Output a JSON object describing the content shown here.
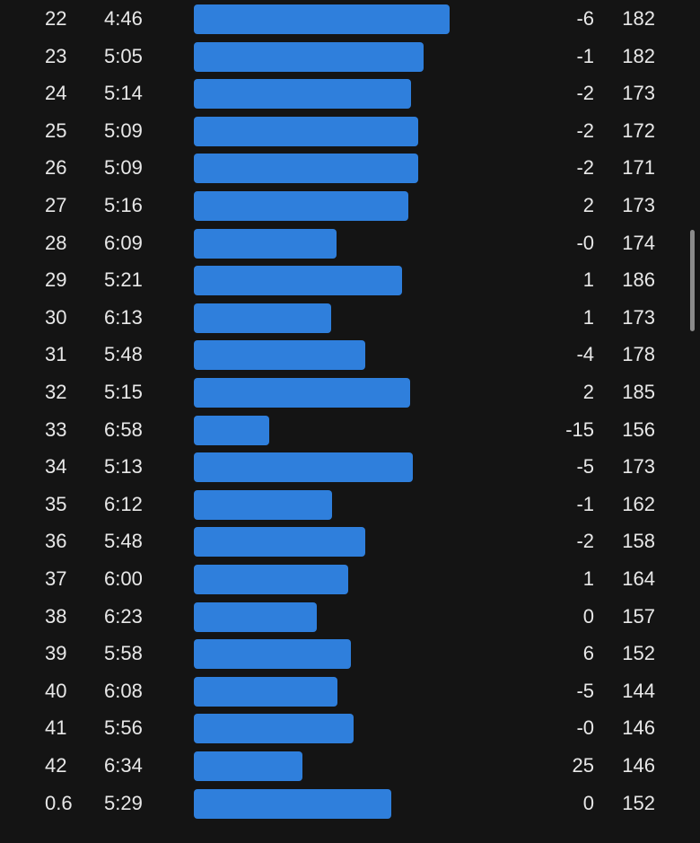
{
  "splits": [
    {
      "km": "22",
      "pace": "4:46",
      "pace_seconds": 286,
      "elev": "-6",
      "hr": "182"
    },
    {
      "km": "23",
      "pace": "5:05",
      "pace_seconds": 305,
      "elev": "-1",
      "hr": "182"
    },
    {
      "km": "24",
      "pace": "5:14",
      "pace_seconds": 314,
      "elev": "-2",
      "hr": "173"
    },
    {
      "km": "25",
      "pace": "5:09",
      "pace_seconds": 309,
      "elev": "-2",
      "hr": "172"
    },
    {
      "km": "26",
      "pace": "5:09",
      "pace_seconds": 309,
      "elev": "-2",
      "hr": "171"
    },
    {
      "km": "27",
      "pace": "5:16",
      "pace_seconds": 316,
      "elev": "2",
      "hr": "173"
    },
    {
      "km": "28",
      "pace": "6:09",
      "pace_seconds": 369,
      "elev": "-0",
      "hr": "174"
    },
    {
      "km": "29",
      "pace": "5:21",
      "pace_seconds": 321,
      "elev": "1",
      "hr": "186"
    },
    {
      "km": "30",
      "pace": "6:13",
      "pace_seconds": 373,
      "elev": "1",
      "hr": "173"
    },
    {
      "km": "31",
      "pace": "5:48",
      "pace_seconds": 348,
      "elev": "-4",
      "hr": "178"
    },
    {
      "km": "32",
      "pace": "5:15",
      "pace_seconds": 315,
      "elev": "2",
      "hr": "185"
    },
    {
      "km": "33",
      "pace": "6:58",
      "pace_seconds": 418,
      "elev": "-15",
      "hr": "156"
    },
    {
      "km": "34",
      "pace": "5:13",
      "pace_seconds": 313,
      "elev": "-5",
      "hr": "173"
    },
    {
      "km": "35",
      "pace": "6:12",
      "pace_seconds": 372,
      "elev": "-1",
      "hr": "162"
    },
    {
      "km": "36",
      "pace": "5:48",
      "pace_seconds": 348,
      "elev": "-2",
      "hr": "158"
    },
    {
      "km": "37",
      "pace": "6:00",
      "pace_seconds": 360,
      "elev": "1",
      "hr": "164"
    },
    {
      "km": "38",
      "pace": "6:23",
      "pace_seconds": 383,
      "elev": "0",
      "hr": "157"
    },
    {
      "km": "39",
      "pace": "5:58",
      "pace_seconds": 358,
      "elev": "6",
      "hr": "152"
    },
    {
      "km": "40",
      "pace": "6:08",
      "pace_seconds": 368,
      "elev": "-5",
      "hr": "144"
    },
    {
      "km": "41",
      "pace": "5:56",
      "pace_seconds": 356,
      "elev": "-0",
      "hr": "146"
    },
    {
      "km": "42",
      "pace": "6:34",
      "pace_seconds": 394,
      "elev": "25",
      "hr": "146"
    },
    {
      "km": "0.6",
      "pace": "5:29",
      "pace_seconds": 329,
      "elev": "0",
      "hr": "152"
    }
  ],
  "colors": {
    "background": "#141414",
    "bar": "#2f7fdc",
    "text": "#e8e8e8",
    "scrollbar": "#8a8a8a"
  }
}
